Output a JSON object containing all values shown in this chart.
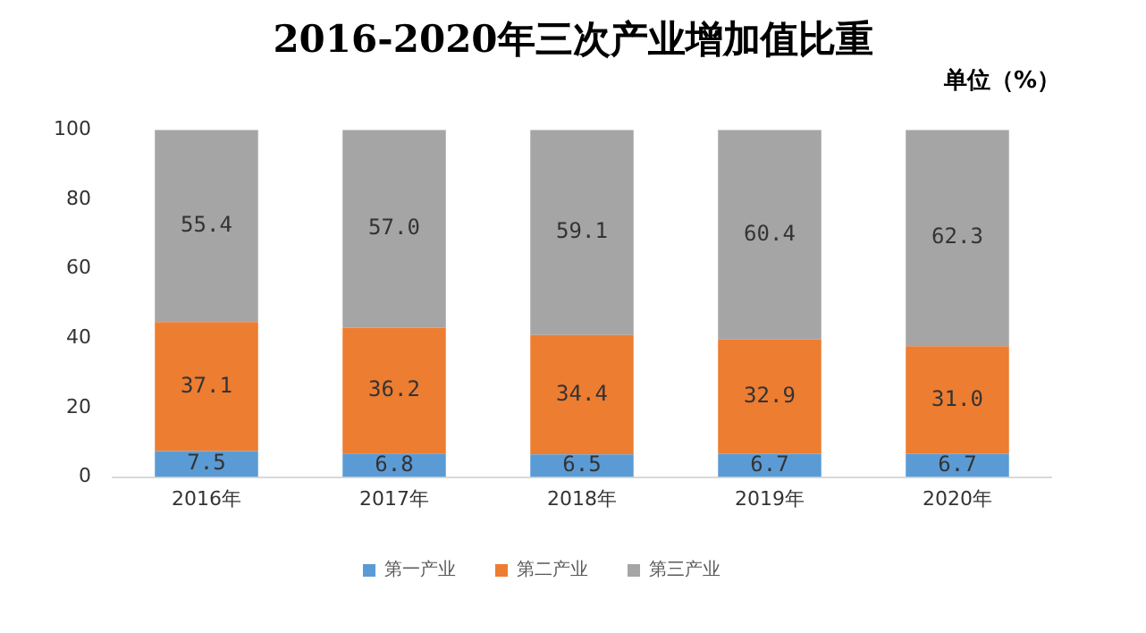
{
  "chart_data": {
    "type": "bar",
    "title": "2016-2020年三次产业增加值比重",
    "annotations": [
      "单位（%）"
    ],
    "categories": [
      "2016年",
      "2017年",
      "2018年",
      "2019年",
      "2020年"
    ],
    "stacked": true,
    "ylim": [
      0,
      100
    ],
    "yticks": [
      0,
      20,
      40,
      60,
      80,
      100
    ],
    "grid": false,
    "legend": "bottom",
    "series": [
      {
        "name": "第一产业",
        "color": "#5b9bd5",
        "values": [
          7.5,
          6.8,
          6.5,
          6.7,
          6.7
        ],
        "value_labels": [
          "7.5",
          "6.8",
          "6.5",
          "6.7",
          "6.7"
        ]
      },
      {
        "name": "第二产业",
        "color": "#ed7d31",
        "values": [
          37.1,
          36.2,
          34.4,
          32.9,
          31.0
        ],
        "value_labels": [
          "37.1",
          "36.2",
          "34.4",
          "32.9",
          "31.0"
        ]
      },
      {
        "name": "第三产业",
        "color": "#a5a5a5",
        "values": [
          55.4,
          57.0,
          59.1,
          60.4,
          62.3
        ],
        "value_labels": [
          "55.4",
          "57.0",
          "59.1",
          "60.4",
          "62.3"
        ]
      }
    ]
  }
}
